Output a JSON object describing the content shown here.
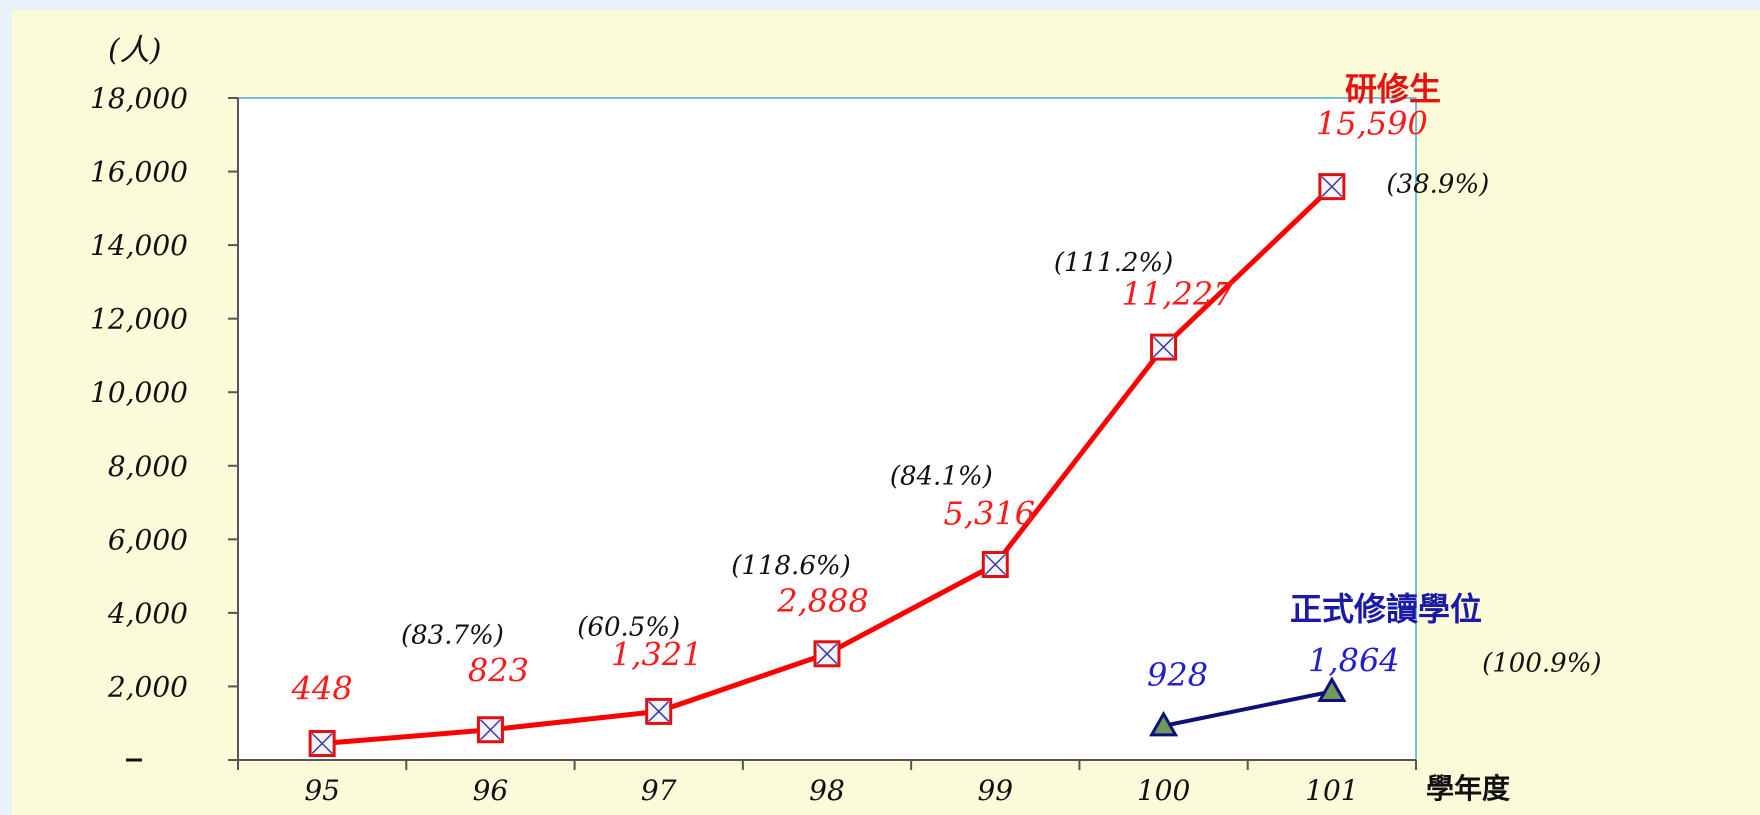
{
  "chart_data": {
    "type": "line",
    "unit_label": "(人)",
    "xlabel": "學年度",
    "categories": [
      "95",
      "96",
      "97",
      "98",
      "99",
      "100",
      "101"
    ],
    "y_ticks": [
      "",
      "2,000",
      "4,000",
      "6,000",
      "8,000",
      "10,000",
      "12,000",
      "14,000",
      "16,000",
      "18,000"
    ],
    "ylim": [
      0,
      18000
    ],
    "grid": false,
    "series": [
      {
        "name": "研修生",
        "color": "#ff0000",
        "marker": "square-x",
        "values": [
          448,
          823,
          1321,
          2888,
          5316,
          11227,
          15590
        ],
        "value_labels": [
          "448",
          "823",
          "1,321",
          "2,888",
          "5,316",
          "11,227",
          "15,590"
        ],
        "growth_labels": [
          "",
          "(83.7%)",
          "(60.5%)",
          "(118.6%)",
          "(84.1%)",
          "(111.2%)",
          "(38.9%)"
        ]
      },
      {
        "name": "正式修讀學位",
        "color": "#10107a",
        "marker": "triangle",
        "values": [
          null,
          null,
          null,
          null,
          null,
          928,
          1864
        ],
        "value_labels": [
          "",
          "",
          "",
          "",
          "",
          "928",
          "1,864"
        ],
        "growth_labels": [
          "",
          "",
          "",
          "",
          "",
          "",
          "(100.9%)"
        ]
      }
    ]
  }
}
